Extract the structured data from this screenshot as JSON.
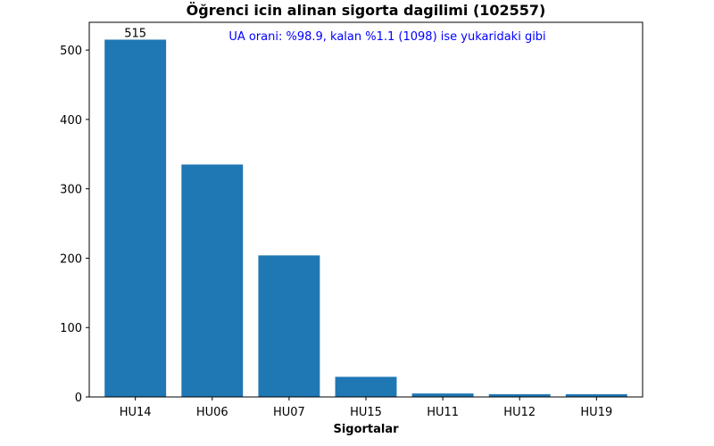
{
  "chart_data": {
    "type": "bar",
    "title": "Öğrenci icin alinan sigorta dagilimi (102557)",
    "xlabel": "Sigortalar",
    "ylabel": "",
    "categories": [
      "HU14",
      "HU06",
      "HU07",
      "HU15",
      "HU11",
      "HU12",
      "HU19"
    ],
    "values": [
      515,
      335,
      204,
      29,
      5,
      4,
      4
    ],
    "ylim": [
      0,
      540
    ],
    "yticks": [
      0,
      100,
      200,
      300,
      400,
      500
    ],
    "bar_color": "#1f77b4",
    "data_labels": [
      {
        "index": 0,
        "text": "515"
      }
    ],
    "annotation": {
      "text": "UA orani: %98.9, kalan %1.1 (1098) ise yukaridaki gibi",
      "color": "#0000ff"
    },
    "grid": false,
    "legend": "none"
  }
}
